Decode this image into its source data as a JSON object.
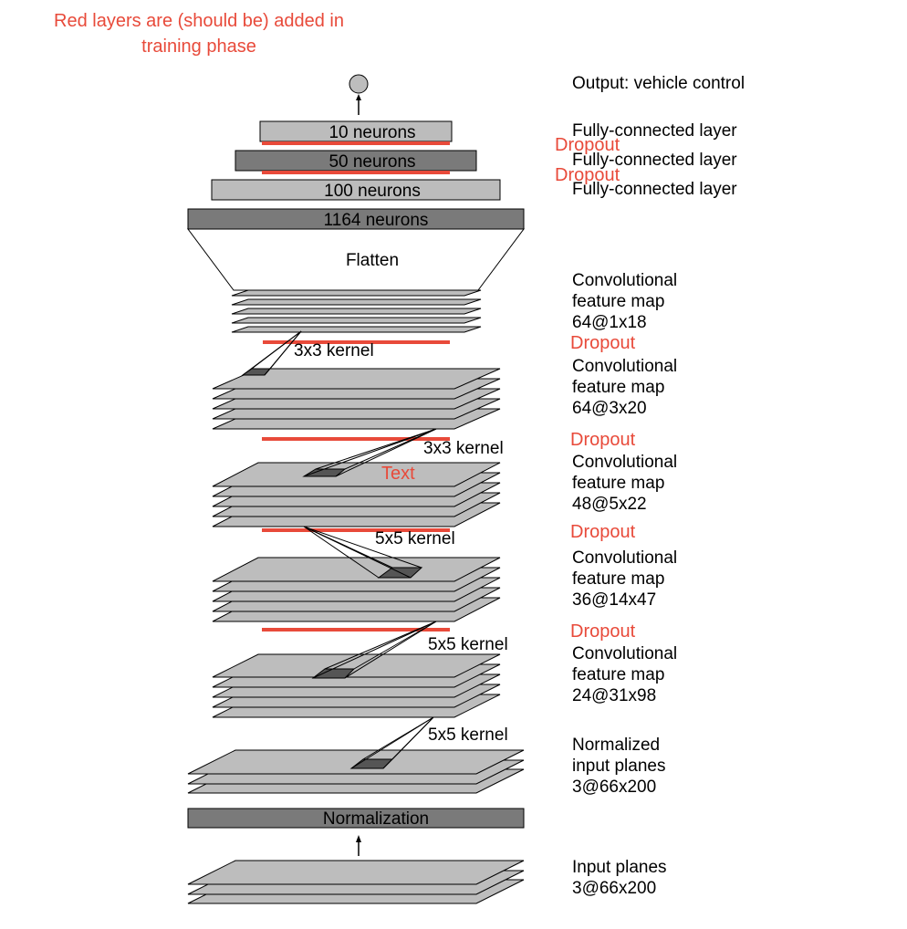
{
  "colors": {
    "red": "#e84a3a",
    "plane": "#bdbdbd",
    "plane_stroke": "#000000",
    "fc_light": "#bcbcbc",
    "fc_dark": "#7a7a7a",
    "kernel": "#555555",
    "circle": "#bdbdbd"
  },
  "note": {
    "line1": "Red layers are (should be) added in",
    "line2": "training phase"
  },
  "output": {
    "label": "Output: vehicle control"
  },
  "fc_layers": [
    {
      "count": "10 neurons",
      "label": "Fully-connected layer",
      "shade": "light"
    },
    {
      "count": "50 neurons",
      "label": "Fully-connected layer",
      "shade": "dark"
    },
    {
      "count": "100 neurons",
      "label": "Fully-connected layer",
      "shade": "light"
    },
    {
      "count": "1164 neurons",
      "label": "",
      "shade": "dark"
    }
  ],
  "fc_dropouts": [
    "Dropout",
    "Dropout"
  ],
  "flatten": {
    "label": "Flatten"
  },
  "conv_maps": [
    {
      "line1": "Convolutional",
      "line2": "feature map",
      "dims": "64@1x18"
    },
    {
      "line1": "Convolutional",
      "line2": "feature map",
      "dims": "64@3x20"
    },
    {
      "line1": "Convolutional",
      "line2": "feature map",
      "dims": "48@5x22"
    },
    {
      "line1": "Convolutional",
      "line2": "feature map",
      "dims": "36@14x47"
    },
    {
      "line1": "Convolutional",
      "line2": "feature map",
      "dims": "24@31x98"
    }
  ],
  "conv_dropouts": [
    "Dropout",
    "Dropout",
    "Dropout",
    "Dropout"
  ],
  "kernels": [
    "3x3 kernel",
    "3x3 kernel",
    "5x5 kernel",
    "5x5 kernel",
    "5x5 kernel"
  ],
  "stray_text": "Text",
  "normalized": {
    "line1": "Normalized",
    "line2": "input planes",
    "dims": "3@66x200"
  },
  "normalization": {
    "label": "Normalization"
  },
  "input": {
    "line1": "Input planes",
    "dims": "3@66x200"
  }
}
